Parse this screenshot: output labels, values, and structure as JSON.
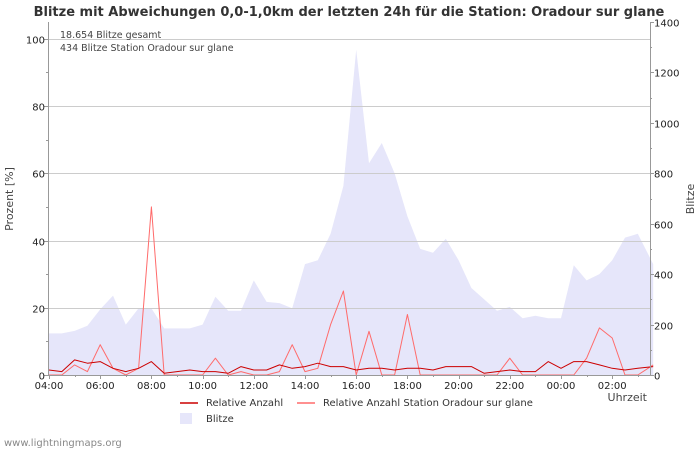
{
  "chart_data": {
    "type": "line",
    "title": "Blitze mit Abweichungen 0,0-1,0km der letzten 24h für die Station: Oradour sur glane",
    "annotations": [
      "18.654 Blitze gesamt",
      "434 Blitze Station Oradour sur glane"
    ],
    "xlabel": "Uhrzeit",
    "ylabel": "Prozent   [%]",
    "y2label": "Blitze",
    "x_tick_labels": [
      "04:00",
      "06:00",
      "08:00",
      "10:00",
      "12:00",
      "14:00",
      "16:00",
      "18:00",
      "20:00",
      "22:00",
      "00:00",
      "02:00"
    ],
    "ylim": [
      0,
      105
    ],
    "y_ticks": [
      0,
      20,
      40,
      60,
      80,
      100
    ],
    "y2lim": [
      0,
      1400
    ],
    "y2_ticks": [
      0,
      200,
      400,
      600,
      800,
      1000,
      1200,
      1400
    ],
    "x_hours_start": 0,
    "x_hours_end": 23.6,
    "series": [
      {
        "name": "Blitze",
        "axis": "right",
        "kind": "area",
        "color": "#e6e6fa",
        "x": [
          0,
          0.5,
          1.0,
          1.5,
          2.0,
          2.5,
          3.0,
          3.5,
          4.0,
          4.5,
          5.0,
          5.5,
          6.0,
          6.5,
          7.0,
          7.5,
          8.0,
          8.5,
          9.0,
          9.5,
          10.0,
          10.5,
          11.0,
          11.5,
          12.0,
          12.5,
          13.0,
          13.5,
          14.0,
          14.5,
          15.0,
          15.5,
          16.0,
          16.5,
          17.0,
          17.5,
          18.0,
          18.5,
          19.0,
          19.5,
          20.0,
          20.5,
          21.0,
          21.5,
          22.0,
          22.5,
          23.0,
          23.6
        ],
        "values": [
          165,
          165,
          175,
          195,
          260,
          315,
          200,
          265,
          265,
          185,
          185,
          185,
          200,
          310,
          255,
          255,
          375,
          290,
          285,
          265,
          440,
          455,
          560,
          750,
          1290,
          840,
          920,
          800,
          630,
          500,
          485,
          540,
          455,
          345,
          300,
          255,
          270,
          225,
          235,
          225,
          225,
          435,
          375,
          400,
          455,
          545,
          560,
          440
        ]
      },
      {
        "name": "Relative Anzahl",
        "axis": "left",
        "kind": "line",
        "color": "#cc0000",
        "x": [
          0,
          0.5,
          1.0,
          1.5,
          2.0,
          2.5,
          3.0,
          3.5,
          4.0,
          4.5,
          5.0,
          5.5,
          6.0,
          6.5,
          7.0,
          7.5,
          8.0,
          8.5,
          9.0,
          9.5,
          10.0,
          10.5,
          11.0,
          11.5,
          12.0,
          12.5,
          13.0,
          13.5,
          14.0,
          14.5,
          15.0,
          15.5,
          16.0,
          16.5,
          17.0,
          17.5,
          18.0,
          18.5,
          19.0,
          19.5,
          20.0,
          20.5,
          21.0,
          21.5,
          22.0,
          22.5,
          23.0,
          23.6
        ],
        "values": [
          1.5,
          1,
          4.5,
          3.5,
          4,
          2,
          1,
          2,
          4,
          0.5,
          1,
          1.5,
          1,
          1,
          0.5,
          2.5,
          1.5,
          1.5,
          3,
          2,
          2.5,
          3.5,
          2.5,
          2.5,
          1.5,
          2,
          2,
          1.5,
          2,
          2,
          1.5,
          2.5,
          2.5,
          2.5,
          0.5,
          1,
          1.5,
          1,
          1,
          4,
          2,
          4,
          4,
          3,
          2,
          1.5,
          2,
          2.5
        ]
      },
      {
        "name": "Relative Anzahl Station Oradour sur glane",
        "axis": "left",
        "kind": "line",
        "color": "#ff6b6b",
        "x": [
          0,
          0.5,
          1.0,
          1.5,
          2.0,
          2.5,
          3.0,
          3.5,
          4.0,
          4.5,
          5.0,
          5.5,
          6.0,
          6.5,
          7.0,
          7.5,
          8.0,
          8.5,
          9.0,
          9.5,
          10.0,
          10.5,
          11.0,
          11.5,
          12.0,
          12.5,
          13.0,
          13.5,
          14.0,
          14.5,
          15.0,
          15.5,
          16.0,
          16.5,
          17.0,
          17.5,
          18.0,
          18.5,
          19.0,
          19.5,
          20.0,
          20.5,
          21.0,
          21.5,
          22.0,
          22.5,
          23.0,
          23.6
        ],
        "values": [
          0,
          0,
          3,
          1,
          9,
          2,
          0,
          2,
          50,
          0,
          0,
          0,
          0,
          5,
          0,
          1,
          0,
          0,
          1,
          9,
          1,
          2,
          15,
          25,
          0,
          13,
          0,
          0,
          18,
          0,
          0,
          0,
          0,
          0,
          0,
          0,
          5,
          0,
          0,
          0,
          0,
          0,
          5,
          14,
          11,
          0,
          0,
          3
        ]
      }
    ],
    "legend": [
      "Relative Anzahl",
      "Relative Anzahl Station Oradour sur glane",
      "Blitze"
    ]
  },
  "footer": "www.lightningmaps.org"
}
